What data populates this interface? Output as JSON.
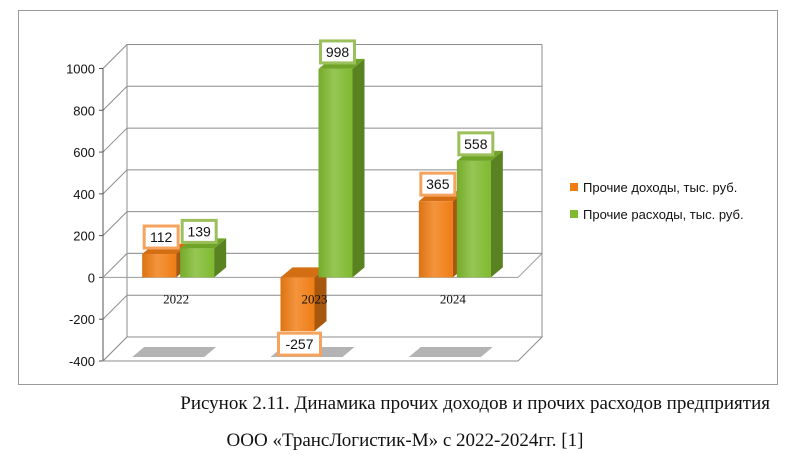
{
  "figure": {
    "caption_line1": "Рисунок 2.11. Динамика прочих доходов и прочих расходов предприятия",
    "caption_line2": "ООО «ТрансЛогистик-М» с 2022-2024гг. [1]"
  },
  "chart_data": {
    "type": "bar",
    "style": "3d-clustered-column",
    "categories": [
      "2022",
      "2023",
      "2024"
    ],
    "series": [
      {
        "name": "Прочие доходы, тыс. руб.",
        "values": [
          112,
          -257,
          365
        ],
        "color": "#f07d14",
        "label_border": "#f5a35d"
      },
      {
        "name": "Прочие расходы, тыс. руб.",
        "values": [
          139,
          998,
          558
        ],
        "color": "#7fba2f",
        "label_border": "#9bbf5a"
      }
    ],
    "ylim": [
      -400,
      1000
    ],
    "yticks": [
      -400,
      -200,
      0,
      200,
      400,
      600,
      800,
      1000
    ],
    "ytick_labels": [
      "-400",
      "-200",
      "0",
      "200",
      "400",
      "600",
      "800",
      "1000"
    ],
    "grid": true,
    "legend_position": "right",
    "data_labels": true
  }
}
